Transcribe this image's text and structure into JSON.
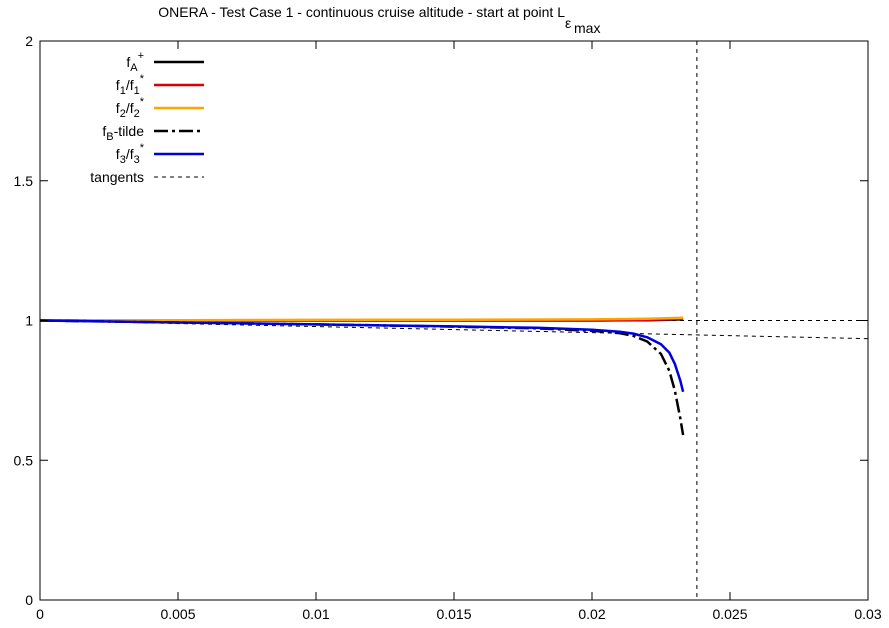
{
  "chart_data": {
    "type": "line",
    "title": {
      "main": "ONERA - Test Case 1 - continuous cruise altitude - start at point L",
      "sub": "ε",
      "subsub": "max"
    },
    "xlabel": "",
    "ylabel": "",
    "xlim": [
      0,
      0.03
    ],
    "ylim": [
      0,
      2
    ],
    "x_ticks": [
      0,
      0.005,
      0.01,
      0.015,
      0.02,
      0.025,
      0.03
    ],
    "x_tick_labels": [
      "0",
      "0.005",
      "0.01",
      "0.015",
      "0.02",
      "0.025",
      "0.03"
    ],
    "y_ticks": [
      0,
      0.5,
      1,
      1.5,
      2
    ],
    "y_tick_labels": [
      "0",
      "0.5",
      "1",
      "1.5",
      "2"
    ],
    "grid": false,
    "legend_position": "top-left",
    "series": [
      {
        "key": "fA",
        "legend": {
          "base": "f",
          "sub": "A",
          "sup": "+"
        },
        "color": "#000000",
        "style": "solid",
        "x": [
          0,
          0.005,
          0.01,
          0.015,
          0.02,
          0.022,
          0.0233
        ],
        "y": [
          1.0,
          1.0,
          1.0,
          1.0,
          1.0,
          1.001,
          1.004
        ]
      },
      {
        "key": "f1",
        "legend": {
          "base": "f",
          "sub": "1",
          "mid": "/f",
          "sub2": "1",
          "sup": "*"
        },
        "color": "#dd0000",
        "style": "solid",
        "x": [
          0,
          0.005,
          0.01,
          0.015,
          0.02,
          0.022,
          0.0233
        ],
        "y": [
          1.0,
          1.0,
          1.0,
          1.0,
          1.0,
          1.002,
          1.006
        ]
      },
      {
        "key": "f2",
        "legend": {
          "base": "f",
          "sub": "2",
          "mid": "/f",
          "sub2": "2",
          "sup": "*"
        },
        "color": "#ffa500",
        "style": "solid",
        "x": [
          0,
          0.005,
          0.01,
          0.015,
          0.02,
          0.022,
          0.0233
        ],
        "y": [
          1.0,
          1.001,
          1.002,
          1.003,
          1.004,
          1.006,
          1.01
        ]
      },
      {
        "key": "fB",
        "legend": {
          "base": "f",
          "sub": "B",
          "mid": "-tilde"
        },
        "color": "#000000",
        "style": "dashdot",
        "x": [
          0,
          0.005,
          0.01,
          0.015,
          0.018,
          0.02,
          0.021,
          0.0215,
          0.022,
          0.0225,
          0.0228,
          0.023,
          0.0232,
          0.0233
        ],
        "y": [
          1.0,
          0.993,
          0.986,
          0.978,
          0.972,
          0.963,
          0.955,
          0.945,
          0.925,
          0.88,
          0.82,
          0.75,
          0.65,
          0.59
        ]
      },
      {
        "key": "f3",
        "legend": {
          "base": "f",
          "sub": "3",
          "mid": "/f",
          "sub2": "3",
          "sup": "*"
        },
        "color": "#0000dd",
        "style": "solid",
        "x": [
          0,
          0.005,
          0.01,
          0.015,
          0.018,
          0.02,
          0.021,
          0.0215,
          0.022,
          0.0225,
          0.0228,
          0.023,
          0.0232,
          0.0233
        ],
        "y": [
          1.0,
          0.993,
          0.986,
          0.979,
          0.974,
          0.967,
          0.96,
          0.953,
          0.94,
          0.915,
          0.885,
          0.845,
          0.785,
          0.745
        ]
      }
    ],
    "tangents": {
      "legend": "tangents",
      "color": "#000000",
      "style": "dashed",
      "lines": [
        {
          "x": [
            0,
            0.03
          ],
          "y": [
            1.0,
            1.0
          ]
        },
        {
          "x": [
            0,
            0.03
          ],
          "y": [
            1.0,
            0.935
          ]
        },
        {
          "vertical_x": 0.0238
        }
      ]
    }
  }
}
